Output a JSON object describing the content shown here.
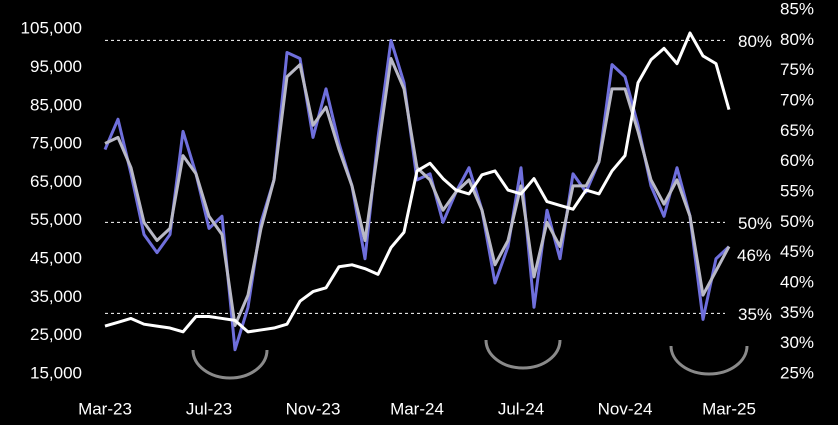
{
  "chart_data": {
    "type": "line",
    "categories": [
      "Mar-23",
      null,
      null,
      null,
      null,
      null,
      null,
      null,
      "Jul-23",
      null,
      null,
      null,
      null,
      null,
      null,
      null,
      "Nov-23",
      null,
      null,
      null,
      null,
      null,
      null,
      null,
      "Mar-24",
      null,
      null,
      null,
      null,
      null,
      null,
      null,
      "Jul-24",
      null,
      null,
      null,
      null,
      null,
      null,
      null,
      "Nov-24",
      null,
      null,
      null,
      null,
      null,
      null,
      null,
      "Mar-25"
    ],
    "series": [
      {
        "color": "#6f6fdc",
        "axis": "y2",
        "values": [
          62,
          67,
          58,
          48,
          45,
          48,
          65,
          58,
          49,
          51,
          29,
          36,
          50,
          57,
          78,
          77,
          64,
          72,
          63,
          56,
          44,
          64,
          80,
          73,
          57,
          58,
          50,
          55,
          59,
          52,
          40,
          46,
          59,
          36,
          52,
          44,
          58,
          55,
          60,
          76,
          74,
          66,
          56,
          51,
          59,
          51,
          34,
          44,
          46
        ]
      },
      {
        "color": "#b9b9c6",
        "axis": "y2",
        "values": [
          63,
          64,
          59,
          50,
          47,
          49,
          61,
          58,
          51,
          48,
          33,
          38,
          49,
          57,
          74,
          76,
          66,
          69,
          62,
          56,
          47,
          62,
          77,
          72,
          59,
          57,
          52,
          55,
          57,
          52,
          43,
          47,
          56,
          41,
          50,
          46,
          56,
          56,
          60,
          72,
          72,
          65,
          57,
          53,
          57,
          51,
          38,
          42,
          46
        ]
      },
      {
        "color": "#ffffff",
        "values": [
          27500,
          28500,
          29500,
          28000,
          27500,
          27000,
          26000,
          30000,
          30000,
          29500,
          29000,
          26000,
          26500,
          27000,
          28000,
          34000,
          36500,
          37500,
          43000,
          43500,
          42500,
          41000,
          48000,
          52000,
          68000,
          70000,
          66000,
          63000,
          62000,
          67000,
          68000,
          63000,
          62000,
          66000,
          60000,
          59000,
          58000,
          63000,
          62000,
          68000,
          72000,
          91000,
          97000,
          100000,
          96000,
          104000,
          98000,
          96000,
          84000
        ]
      }
    ],
    "ylim": [
      15000,
      110000
    ],
    "yticks": [
      {
        "value": 15000,
        "label": "15,000"
      },
      {
        "value": 25000,
        "label": "25,000"
      },
      {
        "value": 35000,
        "label": "35,000"
      },
      {
        "value": 45000,
        "label": "45,000"
      },
      {
        "value": 55000,
        "label": "55,000"
      },
      {
        "value": 65000,
        "label": "65,000"
      },
      {
        "value": 75000,
        "label": "75,000"
      },
      {
        "value": 85000,
        "label": "85,000"
      },
      {
        "value": 95000,
        "label": "95,000"
      },
      {
        "value": 105000,
        "label": "105,000"
      }
    ],
    "y2lim": [
      25,
      85
    ],
    "y2ticks": [
      {
        "value": 25,
        "label": "25%"
      },
      {
        "value": 30,
        "label": "30%"
      },
      {
        "value": 35,
        "label": "35%"
      },
      {
        "value": 40,
        "label": "40%"
      },
      {
        "value": 45,
        "label": "45%"
      },
      {
        "value": 50,
        "label": "50%"
      },
      {
        "value": 55,
        "label": "55%"
      },
      {
        "value": 60,
        "label": "60%"
      },
      {
        "value": 65,
        "label": "65%"
      },
      {
        "value": 70,
        "label": "70%"
      },
      {
        "value": 75,
        "label": "75%"
      },
      {
        "value": 80,
        "label": "80%"
      },
      {
        "value": 85,
        "label": "85%"
      }
    ],
    "reference_lines": [
      {
        "value": 80,
        "label": "80%"
      },
      {
        "value": 50,
        "label": "50%"
      },
      {
        "value": 35,
        "label": "35%"
      }
    ],
    "annotations": [
      {
        "value": 46,
        "label": "46%"
      }
    ]
  }
}
